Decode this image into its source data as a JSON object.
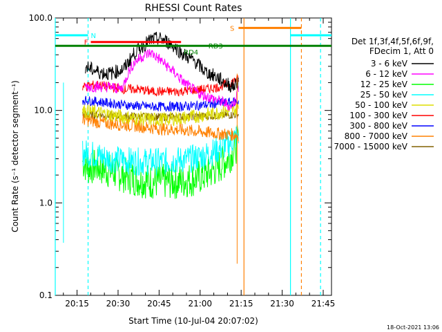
{
  "chart_data": {
    "type": "line",
    "title": "RHESSI Count Rates",
    "xlabel": "Start Time (10-Jul-04 20:07:02)",
    "ylabel": "Count Rate (s⁻¹ detector segment⁻¹)",
    "y_scale": "log",
    "ylim": [
      0.1,
      100.0
    ],
    "xlim_minutes_after_start": [
      0,
      101
    ],
    "x_ticks": [
      {
        "label": "20:15",
        "minute": 7.97
      },
      {
        "label": "20:30",
        "minute": 22.97
      },
      {
        "label": "20:45",
        "minute": 37.97
      },
      {
        "label": "21:00",
        "minute": 52.97
      },
      {
        "label": "21:15",
        "minute": 67.97
      },
      {
        "label": "21:30",
        "minute": 82.97
      },
      {
        "label": "21:45",
        "minute": 97.97
      }
    ],
    "y_ticks": [
      "0.1",
      "1.0",
      "10.0",
      "100.0"
    ],
    "legend": {
      "header": [
        "Det 1f,3f,4f,5f,6f,9f,",
        "FDecim 1, Att 0"
      ],
      "placement": "right"
    },
    "series": [
      {
        "name": "3 - 6 keV",
        "color": "#000000",
        "x": [
          11,
          13,
          16,
          20,
          25,
          29,
          32,
          35,
          38,
          41,
          44,
          47,
          51,
          55,
          59,
          62,
          65,
          67
        ],
        "y": [
          30,
          28,
          26,
          25,
          28,
          42,
          50,
          58,
          60,
          55,
          48,
          40,
          34,
          26,
          23,
          20,
          18,
          21
        ]
      },
      {
        "name": "6 - 12 keV",
        "color": "#ff00ff",
        "x": [
          11,
          15,
          20,
          24,
          25,
          27,
          29,
          31,
          33,
          35,
          38,
          41,
          44,
          47,
          50,
          53,
          56,
          59,
          62,
          64,
          66,
          67
        ],
        "y": [
          18,
          18,
          18,
          17,
          19,
          27,
          33,
          37,
          40,
          42,
          36,
          30,
          25,
          20,
          17,
          15,
          14,
          13,
          12,
          11,
          13,
          18
        ]
      },
      {
        "name": "12 - 25 keV",
        "color": "#00ff00",
        "x": [
          10,
          12,
          15,
          20,
          25,
          30,
          35,
          40,
          45,
          50,
          55,
          60,
          63,
          66,
          67
        ],
        "y": [
          2.8,
          2.4,
          2.5,
          2.2,
          2.0,
          1.8,
          1.7,
          1.7,
          1.7,
          1.8,
          2.0,
          2.5,
          3.0,
          4.0,
          5.0
        ]
      },
      {
        "name": "25 - 50 keV",
        "color": "#00ffff",
        "x": [
          10,
          15,
          20,
          25,
          30,
          35,
          40,
          45,
          50,
          55,
          60,
          64,
          67
        ],
        "y": [
          3.5,
          3.3,
          3.0,
          2.9,
          2.8,
          2.8,
          2.8,
          2.9,
          3.0,
          3.3,
          3.8,
          4.5,
          5.5
        ]
      },
      {
        "name": "50 - 100 keV",
        "color": "#dddd00",
        "x": [
          10,
          15,
          20,
          25,
          30,
          35,
          40,
          45,
          50,
          55,
          60,
          64,
          67
        ],
        "y": [
          10,
          9.5,
          9.0,
          8.5,
          8.2,
          8.0,
          8.0,
          8.2,
          8.5,
          9.0,
          9.5,
          10,
          10.5
        ]
      },
      {
        "name": "100 - 300 keV",
        "color": "#ff0000",
        "x": [
          10,
          15,
          20,
          25,
          30,
          35,
          40,
          45,
          50,
          55,
          60,
          64,
          67
        ],
        "y": [
          18,
          19,
          18,
          17,
          17,
          16,
          16,
          16,
          16.5,
          17,
          18,
          20,
          22
        ]
      },
      {
        "name": "300 - 800 keV",
        "color": "#0000ff",
        "x": [
          10,
          15,
          20,
          25,
          30,
          35,
          40,
          45,
          50,
          55,
          60,
          64,
          67
        ],
        "y": [
          13,
          12.5,
          12,
          11.5,
          11.2,
          11,
          11,
          11,
          11.2,
          11.5,
          12,
          12.2,
          12.5
        ]
      },
      {
        "name": "800 - 7000 keV",
        "color": "#ff8000",
        "x": [
          10,
          15,
          20,
          25,
          30,
          35,
          40,
          45,
          50,
          55,
          60,
          64,
          67
        ],
        "y": [
          8.0,
          7.5,
          7.2,
          7.0,
          6.8,
          6.5,
          6.3,
          6.2,
          6.0,
          5.8,
          5.6,
          5.5,
          5.4
        ]
      },
      {
        "name": "7000 - 15000 keV",
        "color": "#806000",
        "x": [
          10,
          20,
          30,
          40,
          50,
          60,
          67
        ],
        "y": [
          9.0,
          8.8,
          8.6,
          8.5,
          8.6,
          8.8,
          9.0
        ]
      }
    ],
    "flag_bars": [
      {
        "label": "N",
        "color": "#00ffff",
        "x": [
          0,
          12
        ],
        "y": 65
      },
      {
        "label": "N",
        "color": "#00ffff",
        "x": [
          86,
          101
        ],
        "y": 65
      },
      {
        "label": "F",
        "color": "#ff0000",
        "x": [
          13,
          46
        ],
        "y": 55
      },
      {
        "label": "S",
        "color": "#ff8000",
        "x": [
          67,
          90
        ],
        "y": 78
      },
      {
        "label": "RD4",
        "color": "#008000",
        "x": [
          0,
          101
        ],
        "y": 50
      },
      {
        "label": "RD3",
        "color": "#008000",
        "x": [
          0,
          101
        ],
        "y": 50
      }
    ],
    "vertical_markers": [
      {
        "color": "#00ffff",
        "style": "solid",
        "x": 0
      },
      {
        "color": "#00ffff",
        "style": "dashed",
        "x": 12
      },
      {
        "color": "#ff8000",
        "style": "solid",
        "x": 69
      },
      {
        "color": "#ff8000",
        "style": "dashed",
        "x": 90
      },
      {
        "color": "#00ffff",
        "style": "solid",
        "x": 86
      },
      {
        "color": "#00ffff",
        "style": "dashed",
        "x": 97
      }
    ],
    "timestamp": "18-Oct-2021 13:06"
  }
}
